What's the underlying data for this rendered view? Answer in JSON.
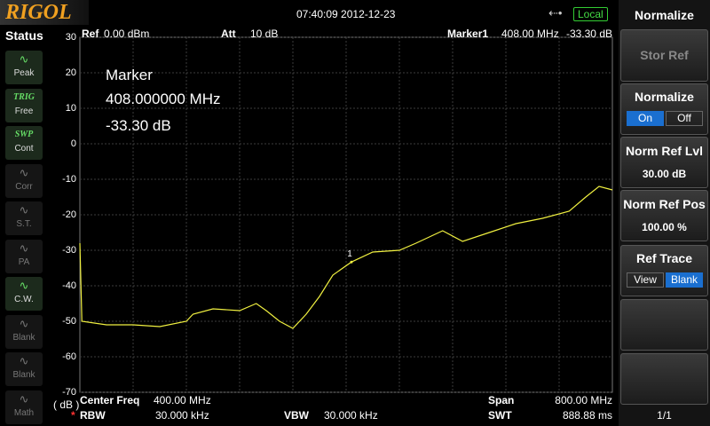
{
  "header": {
    "logo": "RIGOL",
    "datetime": "07:40:09 2012-12-23",
    "mode": "Local"
  },
  "status": {
    "title": "Status",
    "items": [
      {
        "label": "Peak"
      },
      {
        "top": "TRIG",
        "label": "Free"
      },
      {
        "top": "SWP",
        "label": "Cont"
      },
      {
        "label": "Corr"
      },
      {
        "label": "S.T."
      },
      {
        "label": "PA"
      },
      {
        "label": "C.W."
      },
      {
        "label": "Blank"
      },
      {
        "label": "Blank"
      },
      {
        "label": "Math"
      }
    ]
  },
  "info": {
    "ref_label": "Ref",
    "ref_value": "0.00 dBm",
    "att_label": "Att",
    "att_value": "10 dB",
    "marker_label": "Marker1",
    "marker_freq": "408.00 MHz",
    "marker_level": "-33.30 dB"
  },
  "marker_box": [
    "Marker",
    "408.000000 MHz",
    "-33.30 dB"
  ],
  "footer": {
    "unit": "( dB )",
    "center_label": "Center Freq",
    "center_value": "400.00 MHz",
    "span_label": "Span",
    "span_value": "800.00 MHz",
    "rbw_flag": "*",
    "rbw_label": "RBW",
    "rbw_value": "30.000 kHz",
    "vbw_label": "VBW",
    "vbw_value": "30.000 kHz",
    "swt_label": "SWT",
    "swt_value": "888.88 ms"
  },
  "menu": {
    "title": "Normalize",
    "stor_ref": "Stor Ref",
    "normalize": {
      "label": "Normalize",
      "on": "On",
      "off": "Off"
    },
    "norm_ref_lvl": {
      "label": "Norm Ref Lvl",
      "value": "30.00 dB"
    },
    "norm_ref_pos": {
      "label": "Norm Ref Pos",
      "value": "100.00 %"
    },
    "ref_trace": {
      "label": "Ref Trace",
      "view": "View",
      "blank": "Blank"
    },
    "page": "1/1"
  },
  "chart_data": {
    "type": "line",
    "color": "#f0f040",
    "x": [
      0,
      3,
      40,
      80,
      120,
      160,
      170,
      200,
      240,
      265,
      280,
      300,
      320,
      340,
      360,
      380,
      408,
      440,
      480,
      505,
      545,
      575,
      615,
      655,
      695,
      735,
      760,
      780,
      800
    ],
    "values": [
      -28,
      -50,
      -51,
      -51,
      -51.5,
      -50,
      -48,
      -46.5,
      -47,
      -45,
      -47,
      -50,
      -52,
      -48,
      -43,
      -37,
      -33.3,
      -30.5,
      -30,
      -28,
      -24.5,
      -27.5,
      -25,
      -22.5,
      -21,
      -19,
      -15,
      -12,
      -13
    ],
    "xlim": [
      0,
      800
    ],
    "ylim": [
      -70,
      30
    ],
    "yticks": [
      30,
      20,
      10,
      0,
      -10,
      -20,
      -30,
      -40,
      -50,
      -60,
      -70
    ],
    "grid": true,
    "markers": [
      {
        "label": "1",
        "x": 408,
        "y": -33.3
      }
    ]
  }
}
